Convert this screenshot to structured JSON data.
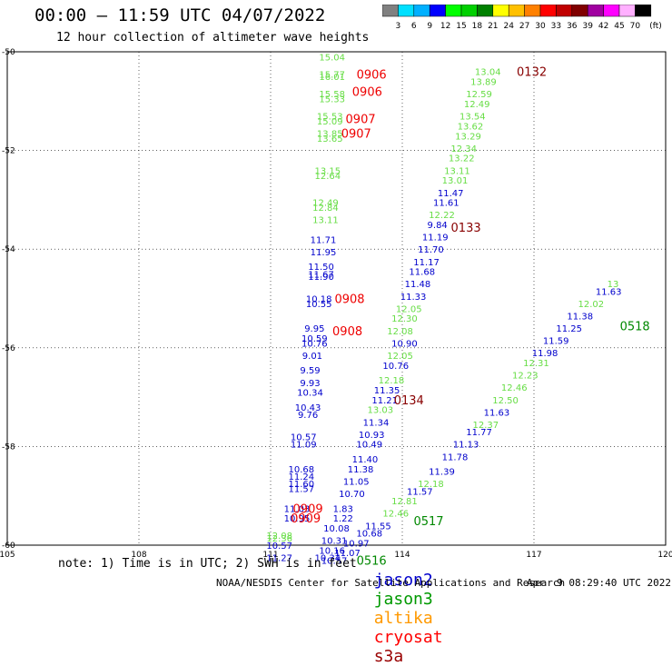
{
  "header": {
    "title": "00:00 – 11:59 UTC 04/07/2022",
    "subtitle": "12 hour collection of altimeter wave heights"
  },
  "scale": {
    "labels": [
      "3",
      "6",
      "9",
      "12",
      "15",
      "18",
      "21",
      "24",
      "27",
      "30",
      "33",
      "36",
      "39",
      "42",
      "45",
      "70"
    ],
    "unit": "(ft)",
    "colors": [
      "#808080",
      "#00e0ff",
      "#00b0ff",
      "#0000ff",
      "#00ff00",
      "#00d000",
      "#008000",
      "#ffff00",
      "#ffc000",
      "#ff8000",
      "#ff0000",
      "#c00000",
      "#800000",
      "#a000a0",
      "#ff00ff",
      "#ffb0ff",
      "#000000"
    ]
  },
  "footer": {
    "note": "note: 1) Time is in UTC; 2) SWH is in feet",
    "credit": "NOAA/NESDIS Center for Satellite Applications and Research",
    "generated": "Apr  9 08:29:40 UTC 2022"
  },
  "legend": [
    {
      "name": "jason2",
      "color": "#0000cc"
    },
    {
      "name": "jason3",
      "color": "#009900"
    },
    {
      "name": "altika",
      "color": "#ff9900"
    },
    {
      "name": "cryosat",
      "color": "#ff0000"
    },
    {
      "name": "s3a",
      "color": "#990000"
    }
  ],
  "chart_data": {
    "type": "scatter",
    "title": "00:00 – 11:59 UTC 04/07/2022",
    "subtitle": "12 hour collection of altimeter wave heights",
    "xlim": [
      105,
      120
    ],
    "ylim": [
      -60,
      -50
    ],
    "x_ticks": [
      105,
      108,
      111,
      114,
      117,
      120
    ],
    "y_ticks": [
      -50,
      -52,
      -54,
      -56,
      -58,
      -60
    ],
    "grid": true,
    "legend_position": "bottom",
    "points": [
      {
        "x": 112.4,
        "y": -50.1,
        "v": "15.04",
        "c": "#66dd44"
      },
      {
        "x": 112.4,
        "y": -50.45,
        "v": "15.77",
        "c": "#66dd44"
      },
      {
        "x": 112.4,
        "y": -50.5,
        "v": "16.01",
        "c": "#66dd44"
      },
      {
        "x": 112.4,
        "y": -50.85,
        "v": "15.58",
        "c": "#66dd44"
      },
      {
        "x": 112.4,
        "y": -50.95,
        "v": "15.33",
        "c": "#66dd44"
      },
      {
        "x": 112.35,
        "y": -51.3,
        "v": "15.53",
        "c": "#66dd44"
      },
      {
        "x": 112.35,
        "y": -51.4,
        "v": "15.09",
        "c": "#66dd44"
      },
      {
        "x": 112.35,
        "y": -51.65,
        "v": "13.85",
        "c": "#66dd44"
      },
      {
        "x": 112.35,
        "y": -51.75,
        "v": "13.65",
        "c": "#66dd44"
      },
      {
        "x": 112.3,
        "y": -52.4,
        "v": "13.15",
        "c": "#66dd44"
      },
      {
        "x": 112.3,
        "y": -52.5,
        "v": "12.64",
        "c": "#66dd44"
      },
      {
        "x": 112.25,
        "y": -53.05,
        "v": "12.49",
        "c": "#66dd44"
      },
      {
        "x": 112.25,
        "y": -53.15,
        "v": "12.84",
        "c": "#66dd44"
      },
      {
        "x": 112.25,
        "y": -53.4,
        "v": "13.11",
        "c": "#66dd44"
      },
      {
        "x": 112.2,
        "y": -53.8,
        "v": "11.71",
        "c": "#0000cc"
      },
      {
        "x": 112.2,
        "y": -54.05,
        "v": "11.95",
        "c": "#0000cc"
      },
      {
        "x": 112.15,
        "y": -54.35,
        "v": "11.50",
        "c": "#0000cc"
      },
      {
        "x": 112.15,
        "y": -54.5,
        "v": "11.67",
        "c": "#0000cc"
      },
      {
        "x": 112.15,
        "y": -54.55,
        "v": "11.90",
        "c": "#0000cc"
      },
      {
        "x": 112.1,
        "y": -55.0,
        "v": "10.18",
        "c": "#0000cc"
      },
      {
        "x": 112.1,
        "y": -55.1,
        "v": "10.55",
        "c": "#0000cc"
      },
      {
        "x": 112.0,
        "y": -55.6,
        "v": "9.95",
        "c": "#0000cc"
      },
      {
        "x": 112.0,
        "y": -55.8,
        "v": "10.59",
        "c": "#0000cc"
      },
      {
        "x": 112.0,
        "y": -55.9,
        "v": "10.76",
        "c": "#0000cc"
      },
      {
        "x": 111.95,
        "y": -56.15,
        "v": "9.01",
        "c": "#0000cc"
      },
      {
        "x": 111.9,
        "y": -56.45,
        "v": "9.59",
        "c": "#0000cc"
      },
      {
        "x": 111.9,
        "y": -56.7,
        "v": "9.93",
        "c": "#0000cc"
      },
      {
        "x": 111.9,
        "y": -56.9,
        "v": "10.34",
        "c": "#0000cc"
      },
      {
        "x": 111.85,
        "y": -57.2,
        "v": "10.43",
        "c": "#0000cc"
      },
      {
        "x": 111.85,
        "y": -57.35,
        "v": "9.76",
        "c": "#0000cc"
      },
      {
        "x": 111.75,
        "y": -57.8,
        "v": "10.57",
        "c": "#0000cc"
      },
      {
        "x": 111.75,
        "y": -57.95,
        "v": "11.09",
        "c": "#0000cc"
      },
      {
        "x": 111.7,
        "y": -58.45,
        "v": "10.68",
        "c": "#0000cc"
      },
      {
        "x": 111.7,
        "y": -58.6,
        "v": "11.24",
        "c": "#0000cc"
      },
      {
        "x": 111.7,
        "y": -58.75,
        "v": "11.60",
        "c": "#0000cc"
      },
      {
        "x": 111.7,
        "y": -58.85,
        "v": "11.57",
        "c": "#0000cc"
      },
      {
        "x": 111.6,
        "y": -59.25,
        "v": "11.03",
        "c": "#0000cc"
      },
      {
        "x": 111.6,
        "y": -59.45,
        "v": "10.95",
        "c": "#0000cc"
      },
      {
        "x": 111.2,
        "y": -59.8,
        "v": "12.08",
        "c": "#66dd44"
      },
      {
        "x": 111.2,
        "y": -59.85,
        "v": "12.36",
        "c": "#66dd44"
      },
      {
        "x": 111.2,
        "y": -60.0,
        "v": "10.57",
        "c": "#0000cc"
      },
      {
        "x": 111.2,
        "y": -60.25,
        "v": "11.27",
        "c": "#0000cc"
      },
      {
        "x": 112.65,
        "y": -59.25,
        "v": "1.83",
        "c": "#0000cc"
      },
      {
        "x": 112.65,
        "y": -59.45,
        "v": "1.22",
        "c": "#0000cc"
      },
      {
        "x": 112.5,
        "y": -59.65,
        "v": "10.08",
        "c": "#0000cc"
      },
      {
        "x": 112.45,
        "y": -59.9,
        "v": "10.31",
        "c": "#0000cc"
      },
      {
        "x": 112.4,
        "y": -60.1,
        "v": "10.16",
        "c": "#0000cc"
      },
      {
        "x": 112.3,
        "y": -60.25,
        "v": "10.34",
        "c": "#0000cc"
      },
      {
        "x": 112.85,
        "y": -58.95,
        "v": "10.70",
        "c": "#0000cc"
      },
      {
        "x": 112.95,
        "y": -58.7,
        "v": "11.05",
        "c": "#0000cc"
      },
      {
        "x": 113.05,
        "y": -58.45,
        "v": "11.38",
        "c": "#0000cc"
      },
      {
        "x": 113.15,
        "y": -58.25,
        "v": "11.40",
        "c": "#0000cc"
      },
      {
        "x": 113.25,
        "y": -57.95,
        "v": "10.49",
        "c": "#0000cc"
      },
      {
        "x": 113.3,
        "y": -57.75,
        "v": "10.93",
        "c": "#0000cc"
      },
      {
        "x": 113.4,
        "y": -57.5,
        "v": "11.34",
        "c": "#0000cc"
      },
      {
        "x": 113.5,
        "y": -57.25,
        "v": "13.03",
        "c": "#66dd44"
      },
      {
        "x": 113.6,
        "y": -57.05,
        "v": "11.21",
        "c": "#0000cc"
      },
      {
        "x": 113.65,
        "y": -56.85,
        "v": "11.35",
        "c": "#0000cc"
      },
      {
        "x": 113.75,
        "y": -56.65,
        "v": "12.18",
        "c": "#66dd44"
      },
      {
        "x": 113.85,
        "y": -56.35,
        "v": "10.76",
        "c": "#0000cc"
      },
      {
        "x": 113.95,
        "y": -56.15,
        "v": "12.05",
        "c": "#66dd44"
      },
      {
        "x": 114.05,
        "y": -55.9,
        "v": "10.90",
        "c": "#0000cc"
      },
      {
        "x": 113.95,
        "y": -55.65,
        "v": "12.08",
        "c": "#66dd44"
      },
      {
        "x": 114.05,
        "y": -55.4,
        "v": "12.30",
        "c": "#66dd44"
      },
      {
        "x": 114.15,
        "y": -55.2,
        "v": "12.05",
        "c": "#66dd44"
      },
      {
        "x": 114.25,
        "y": -54.95,
        "v": "11.33",
        "c": "#0000cc"
      },
      {
        "x": 114.35,
        "y": -54.7,
        "v": "11.48",
        "c": "#0000cc"
      },
      {
        "x": 114.45,
        "y": -54.45,
        "v": "11.68",
        "c": "#0000cc"
      },
      {
        "x": 114.55,
        "y": -54.25,
        "v": "11.17",
        "c": "#0000cc"
      },
      {
        "x": 114.65,
        "y": -54.0,
        "v": "11.70",
        "c": "#0000cc"
      },
      {
        "x": 114.75,
        "y": -53.75,
        "v": "11.19",
        "c": "#0000cc"
      },
      {
        "x": 114.8,
        "y": -53.5,
        "v": "9.84",
        "c": "#0000cc"
      },
      {
        "x": 114.9,
        "y": -53.3,
        "v": "12.22",
        "c": "#66dd44"
      },
      {
        "x": 115.0,
        "y": -53.05,
        "v": "11.61",
        "c": "#0000cc"
      },
      {
        "x": 115.1,
        "y": -52.85,
        "v": "11.47",
        "c": "#0000cc"
      },
      {
        "x": 115.2,
        "y": -52.6,
        "v": "13.01",
        "c": "#66dd44"
      },
      {
        "x": 115.25,
        "y": -52.4,
        "v": "13.11",
        "c": "#66dd44"
      },
      {
        "x": 115.35,
        "y": -52.15,
        "v": "13.22",
        "c": "#66dd44"
      },
      {
        "x": 115.4,
        "y": -51.95,
        "v": "12.34",
        "c": "#66dd44"
      },
      {
        "x": 115.5,
        "y": -51.7,
        "v": "13.29",
        "c": "#66dd44"
      },
      {
        "x": 115.55,
        "y": -51.5,
        "v": "13.62",
        "c": "#66dd44"
      },
      {
        "x": 115.6,
        "y": -51.3,
        "v": "13.54",
        "c": "#66dd44"
      },
      {
        "x": 115.7,
        "y": -51.05,
        "v": "12.49",
        "c": "#66dd44"
      },
      {
        "x": 115.75,
        "y": -50.85,
        "v": "12.59",
        "c": "#66dd44"
      },
      {
        "x": 115.85,
        "y": -50.6,
        "v": "13.89",
        "c": "#66dd44"
      },
      {
        "x": 115.95,
        "y": -50.4,
        "v": "13.04",
        "c": "#66dd44"
      },
      {
        "x": 112.45,
        "y": -60.3,
        "v": "10.57",
        "c": "#0000cc"
      },
      {
        "x": 112.75,
        "y": -60.15,
        "v": "11.07",
        "c": "#0000cc"
      },
      {
        "x": 112.95,
        "y": -59.95,
        "v": "10.97",
        "c": "#0000cc"
      },
      {
        "x": 113.25,
        "y": -59.75,
        "v": "10.68",
        "c": "#0000cc"
      },
      {
        "x": 113.45,
        "y": -59.6,
        "v": "11.55",
        "c": "#0000cc"
      },
      {
        "x": 113.85,
        "y": -59.35,
        "v": "12.46",
        "c": "#66dd44"
      },
      {
        "x": 114.05,
        "y": -59.1,
        "v": "12.81",
        "c": "#66dd44"
      },
      {
        "x": 114.4,
        "y": -58.9,
        "v": "11.57",
        "c": "#0000cc"
      },
      {
        "x": 114.65,
        "y": -58.75,
        "v": "12.18",
        "c": "#66dd44"
      },
      {
        "x": 114.9,
        "y": -58.5,
        "v": "11.39",
        "c": "#0000cc"
      },
      {
        "x": 115.2,
        "y": -58.2,
        "v": "11.78",
        "c": "#0000cc"
      },
      {
        "x": 115.45,
        "y": -57.95,
        "v": "11.13",
        "c": "#0000cc"
      },
      {
        "x": 115.75,
        "y": -57.7,
        "v": "11.77",
        "c": "#0000cc"
      },
      {
        "x": 115.9,
        "y": -57.55,
        "v": "12.37",
        "c": "#66dd44"
      },
      {
        "x": 116.15,
        "y": -57.3,
        "v": "11.63",
        "c": "#0000cc"
      },
      {
        "x": 116.35,
        "y": -57.05,
        "v": "12.50",
        "c": "#66dd44"
      },
      {
        "x": 116.55,
        "y": -56.8,
        "v": "12.46",
        "c": "#66dd44"
      },
      {
        "x": 116.8,
        "y": -56.55,
        "v": "12.23",
        "c": "#66dd44"
      },
      {
        "x": 117.05,
        "y": -56.3,
        "v": "12.31",
        "c": "#66dd44"
      },
      {
        "x": 117.25,
        "y": -56.1,
        "v": "11.98",
        "c": "#0000cc"
      },
      {
        "x": 117.5,
        "y": -55.85,
        "v": "11.59",
        "c": "#0000cc"
      },
      {
        "x": 117.8,
        "y": -55.6,
        "v": "11.25",
        "c": "#0000cc"
      },
      {
        "x": 118.05,
        "y": -55.35,
        "v": "11.38",
        "c": "#0000cc"
      },
      {
        "x": 118.3,
        "y": -55.1,
        "v": "12.02",
        "c": "#66dd44"
      },
      {
        "x": 118.7,
        "y": -54.85,
        "v": "11.63",
        "c": "#0000cc"
      },
      {
        "x": 118.8,
        "y": -54.7,
        "v": "13",
        "c": "#66dd44"
      }
    ],
    "pass_labels": [
      {
        "x": 113.3,
        "y": -50.45,
        "v": "0906",
        "c": "#ee0000"
      },
      {
        "x": 113.2,
        "y": -50.8,
        "v": "0906",
        "c": "#ee0000"
      },
      {
        "x": 113.05,
        "y": -51.35,
        "v": "0907",
        "c": "#ee0000"
      },
      {
        "x": 112.95,
        "y": -51.65,
        "v": "0907",
        "c": "#ee0000"
      },
      {
        "x": 112.8,
        "y": -55.0,
        "v": "0908",
        "c": "#ee0000"
      },
      {
        "x": 112.75,
        "y": -55.65,
        "v": "0908",
        "c": "#ee0000"
      },
      {
        "x": 111.85,
        "y": -59.25,
        "v": "0909",
        "c": "#ee0000"
      },
      {
        "x": 111.8,
        "y": -59.45,
        "v": "0909",
        "c": "#ee0000"
      },
      {
        "x": 116.95,
        "y": -50.4,
        "v": "0132",
        "c": "#880000"
      },
      {
        "x": 115.45,
        "y": -53.55,
        "v": "0133",
        "c": "#880000"
      },
      {
        "x": 114.15,
        "y": -57.05,
        "v": "0134",
        "c": "#880000"
      },
      {
        "x": 113.3,
        "y": -60.3,
        "v": "0516",
        "c": "#008800"
      },
      {
        "x": 114.6,
        "y": -59.5,
        "v": "0517",
        "c": "#008800"
      },
      {
        "x": 119.3,
        "y": -55.55,
        "v": "0518",
        "c": "#008800"
      }
    ]
  }
}
